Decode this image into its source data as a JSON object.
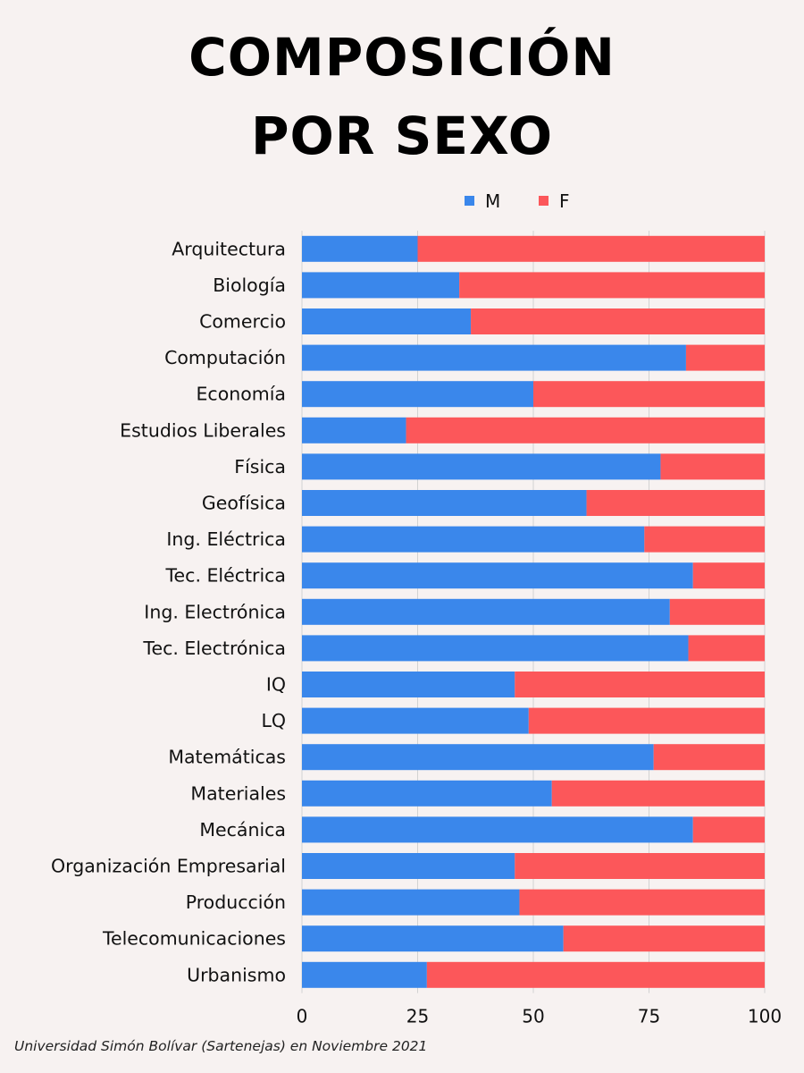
{
  "title_line1": "COMPOSICIÓN",
  "title_line2": "POR SEXO",
  "footnote": "Universidad Simón Bolívar (Sartenejas) en Noviembre 2021",
  "colors": {
    "M": "#3a87eb",
    "F": "#fc575a",
    "grid": "#d2d2d2",
    "background": "#f7f2f1"
  },
  "chart_data": {
    "type": "bar",
    "orientation": "horizontal",
    "stacked": true,
    "categories": [
      "Arquitectura",
      "Biología",
      "Comercio",
      "Computación",
      "Economía",
      "Estudios Liberales",
      "Física",
      "Geofísica",
      "Ing. Eléctrica",
      "Tec. Eléctrica",
      "Ing. Electrónica",
      "Tec. Electrónica",
      "IQ",
      "LQ",
      "Matemáticas",
      "Materiales",
      "Mecánica",
      "Organización Empresarial",
      "Producción",
      "Telecomunicaciones",
      "Urbanismo"
    ],
    "series": [
      {
        "name": "M",
        "values": [
          25,
          34,
          36.5,
          83,
          50,
          22.5,
          77.5,
          61.5,
          74,
          84.5,
          79.5,
          83.5,
          46,
          49,
          76,
          54,
          84.5,
          46,
          47,
          56.5,
          27
        ]
      },
      {
        "name": "F",
        "values": [
          75,
          66,
          63.5,
          17,
          50,
          77.5,
          22.5,
          38.5,
          26,
          15.5,
          20.5,
          16.5,
          54,
          51,
          24,
          46,
          15.5,
          54,
          53,
          43.5,
          73
        ]
      }
    ],
    "xlim": [
      0,
      100
    ],
    "xticks": [
      "0",
      "25",
      "50",
      "75",
      "100"
    ],
    "grid": "vertical",
    "legend": "top-center"
  }
}
